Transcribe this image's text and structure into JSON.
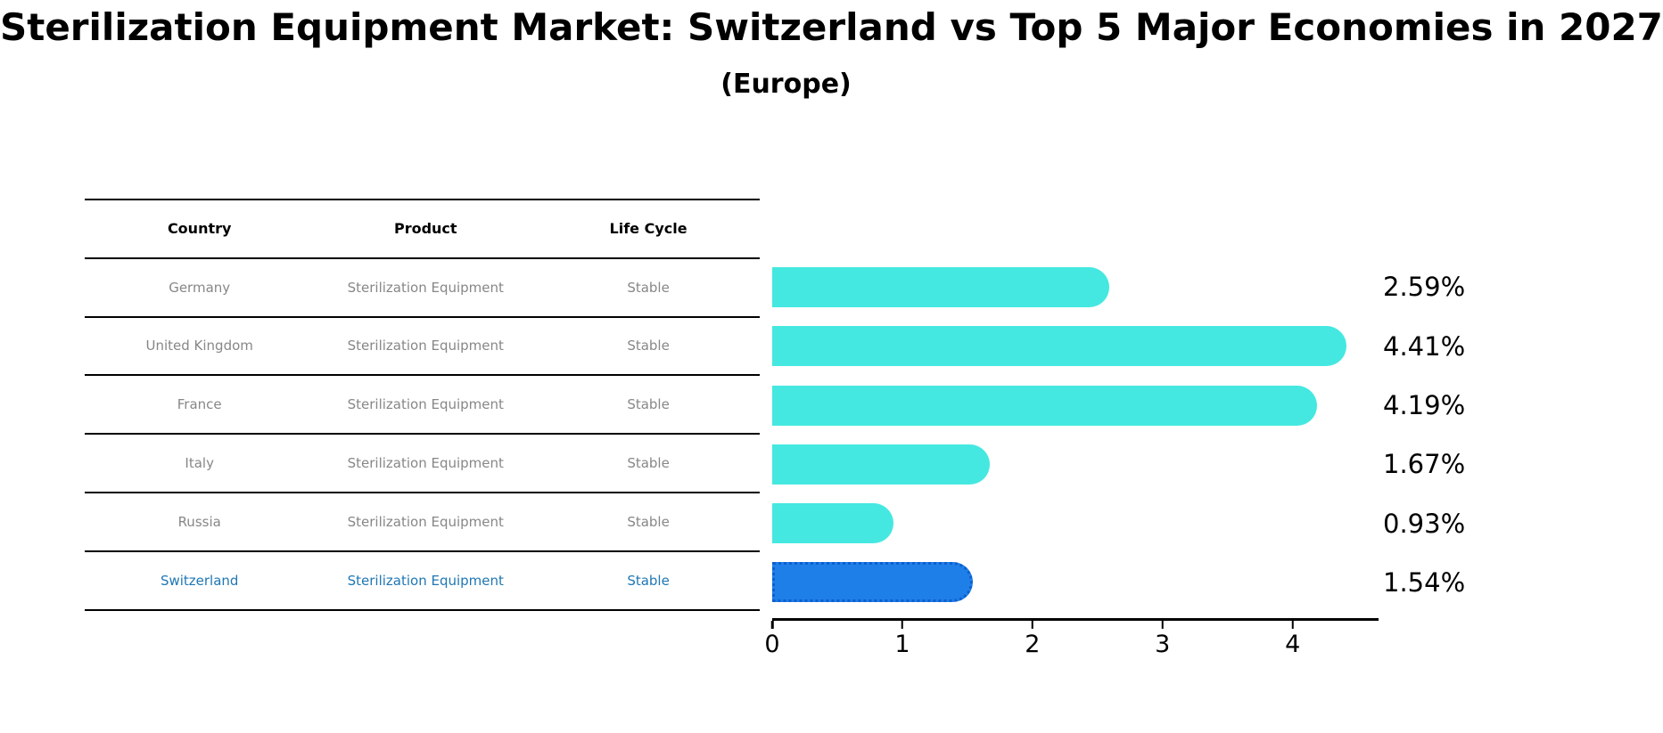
{
  "title": "Sterilization Equipment Market: Switzerland vs Top 5 Major Economies in 2027",
  "subtitle": "(Europe)",
  "table": {
    "headers": [
      "Country",
      "Product",
      "Life Cycle"
    ],
    "rows": [
      {
        "country": "Germany",
        "product": "Sterilization Equipment",
        "life_cycle": "Stable",
        "highlighted": false
      },
      {
        "country": "United Kingdom",
        "product": "Sterilization Equipment",
        "life_cycle": "Stable",
        "highlighted": false
      },
      {
        "country": "France",
        "product": "Sterilization Equipment",
        "life_cycle": "Stable",
        "highlighted": false
      },
      {
        "country": "Italy",
        "product": "Sterilization Equipment",
        "life_cycle": "Stable",
        "highlighted": false
      },
      {
        "country": "Russia",
        "product": "Sterilization Equipment",
        "life_cycle": "Stable",
        "highlighted": false
      },
      {
        "country": "Switzerland",
        "product": "Sterilization Equipment",
        "life_cycle": "Stable",
        "highlighted": true
      }
    ]
  },
  "chart_data": {
    "type": "bar",
    "orientation": "horizontal",
    "title": "Sterilization Equipment Market: Switzerland vs Top 5 Major Economies in 2027",
    "subtitle": "(Europe)",
    "categories": [
      "Germany",
      "United Kingdom",
      "France",
      "Italy",
      "Russia",
      "Switzerland"
    ],
    "values": [
      2.59,
      4.41,
      4.19,
      1.67,
      0.93,
      1.54
    ],
    "value_labels": [
      "2.59%",
      "4.41%",
      "4.19%",
      "1.67%",
      "0.93%",
      "1.54%"
    ],
    "xlabel": "",
    "ylabel": "",
    "xlim": [
      0,
      4.66
    ],
    "xticks": [
      "0",
      "1",
      "2",
      "3",
      "4"
    ],
    "grid": false,
    "legend": null,
    "bar_color": "#45E8E0",
    "highlight_index": 5,
    "highlight_color": "#1E7FE8",
    "highlight_border_color": "#0D5FCE",
    "highlight_border_style": "dotted",
    "value_label_color": "#000000"
  },
  "colors": {
    "table_text_muted": "#878787",
    "table_highlight_text": "#1f77b4",
    "table_line": "#000000",
    "axis_line": "#000000"
  }
}
